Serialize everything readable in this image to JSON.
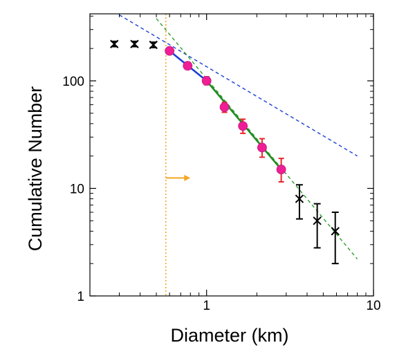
{
  "chart_data": {
    "type": "scatter",
    "title": "",
    "xlabel": "Diameter (km)",
    "ylabel": "Cumulative Number",
    "x_scale": "log",
    "y_scale": "log",
    "xlim": [
      0.2,
      10
    ],
    "ylim": [
      1,
      420
    ],
    "grid": false,
    "legend": "none",
    "x_ticks": [
      {
        "value": 1,
        "label": "1"
      },
      {
        "value": 10,
        "label": "10"
      }
    ],
    "y_ticks": [
      {
        "value": 1,
        "label": "1"
      },
      {
        "value": 10,
        "label": "10"
      },
      {
        "value": 100,
        "label": "100"
      }
    ],
    "threshold_line": {
      "x": 0.57,
      "color": "#f5a623",
      "style": "dotted"
    },
    "threshold_arrow": {
      "x_start": 0.57,
      "x_end": 0.8,
      "y": 12.5,
      "color": "#f5a623"
    },
    "series": [
      {
        "marker": "x",
        "color": "#000000",
        "error_color": "#000000",
        "points": [
          {
            "x": 0.28,
            "y": 220,
            "ylo": 208,
            "yhi": 233
          },
          {
            "x": 0.37,
            "y": 220,
            "ylo": 208,
            "yhi": 233
          },
          {
            "x": 0.48,
            "y": 216,
            "ylo": 204,
            "yhi": 229
          }
        ]
      },
      {
        "marker": "circle",
        "color": "#ee1f96",
        "error_color": "#e8252a",
        "points": [
          {
            "x": 0.6,
            "y": 190,
            "ylo": 178,
            "yhi": 203
          },
          {
            "x": 0.77,
            "y": 138,
            "ylo": 128,
            "yhi": 149
          },
          {
            "x": 1.0,
            "y": 100,
            "ylo": 92,
            "yhi": 109
          },
          {
            "x": 1.28,
            "y": 57,
            "ylo": 51,
            "yhi": 63
          },
          {
            "x": 1.65,
            "y": 38,
            "ylo": 32.5,
            "yhi": 44
          },
          {
            "x": 2.15,
            "y": 24,
            "ylo": 19.5,
            "yhi": 29
          },
          {
            "x": 2.8,
            "y": 15,
            "ylo": 11.5,
            "yhi": 19
          }
        ]
      },
      {
        "marker": "x",
        "color": "#000000",
        "error_color": "#000000",
        "points": [
          {
            "x": 3.6,
            "y": 8,
            "ylo": 5.2,
            "yhi": 10.8
          },
          {
            "x": 4.6,
            "y": 5,
            "ylo": 2.8,
            "yhi": 7.2
          },
          {
            "x": 5.9,
            "y": 4,
            "ylo": 2,
            "yhi": 6
          }
        ]
      }
    ],
    "fit_lines": [
      {
        "color": "#1a3fd6",
        "style": "solid",
        "points": [
          [
            0.6,
            190
          ],
          [
            1.0,
            100
          ]
        ]
      },
      {
        "color": "#1f8a1f",
        "style": "solid",
        "points": [
          [
            1.0,
            100
          ],
          [
            2.8,
            15
          ]
        ]
      },
      {
        "color": "#1a3fd6",
        "style": "dashed",
        "points": [
          [
            0.3,
            410
          ],
          [
            8,
            20
          ]
        ]
      },
      {
        "color": "#2e9e2e",
        "style": "dashed",
        "points": [
          [
            0.5,
            380
          ],
          [
            8,
            2.2
          ]
        ]
      }
    ]
  }
}
